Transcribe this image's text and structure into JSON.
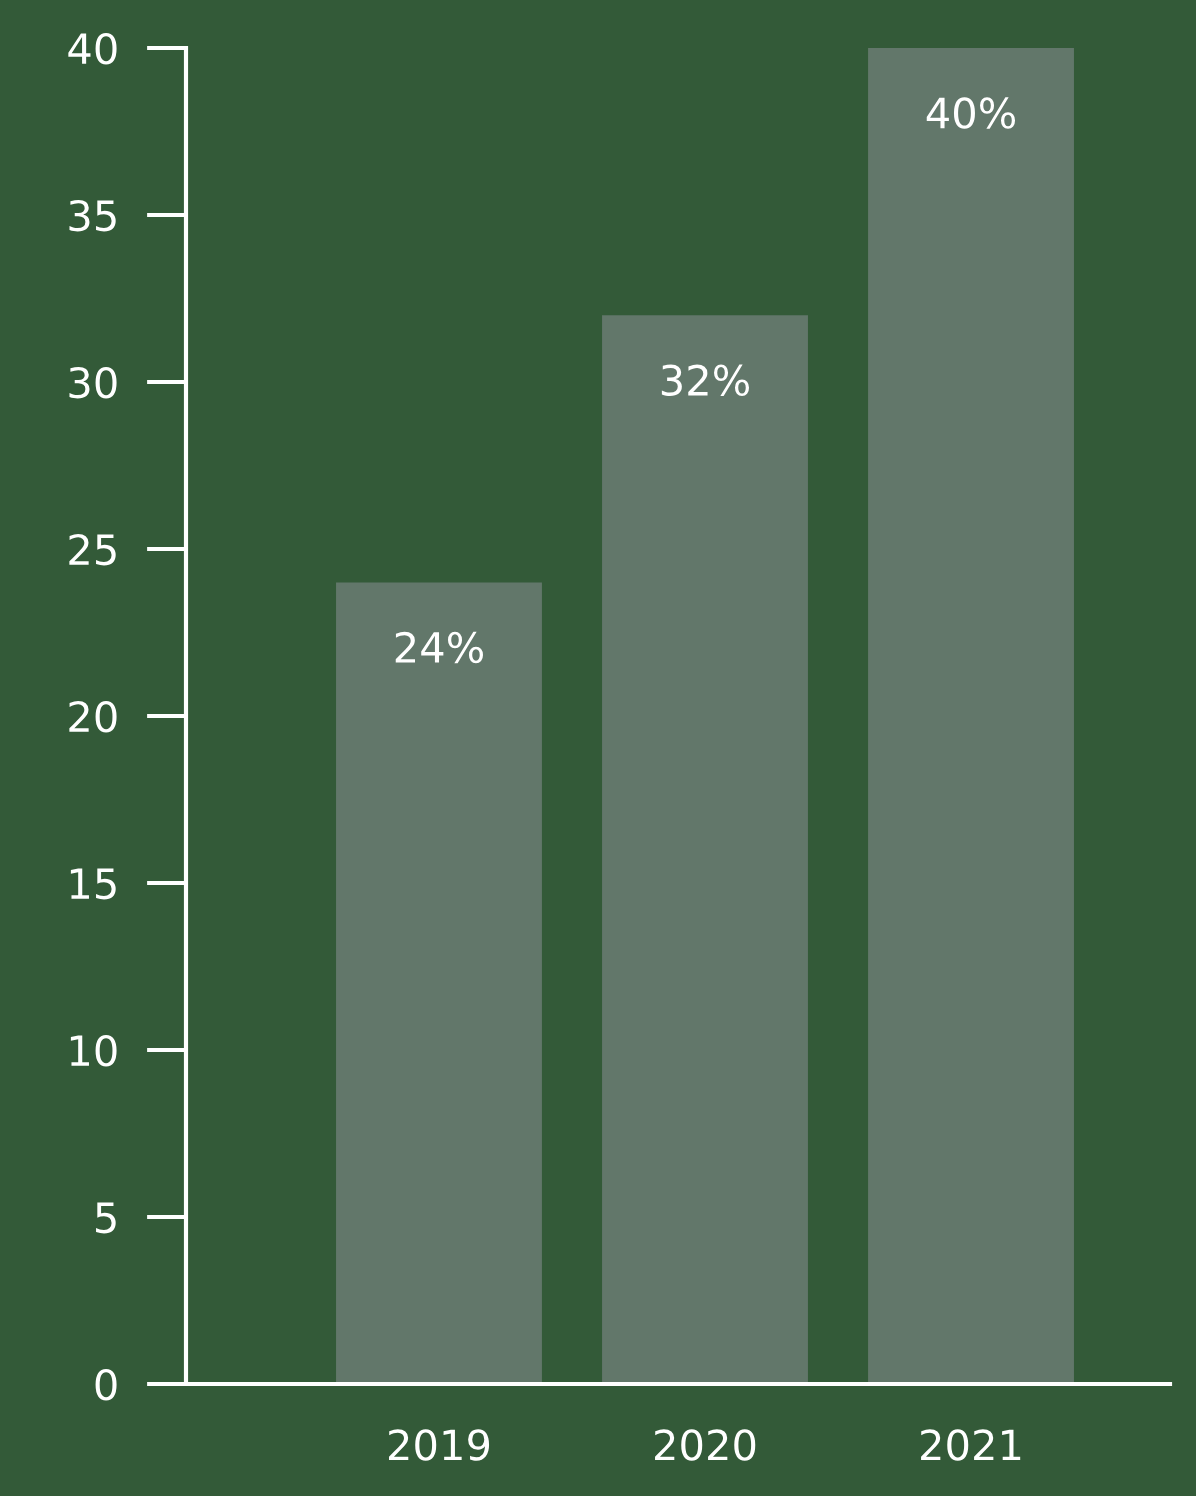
{
  "chart_data": {
    "type": "bar",
    "categories": [
      "2019",
      "2020",
      "2021"
    ],
    "values": [
      24,
      32,
      40
    ],
    "color": "#62776a",
    "value_labels": [
      "24%",
      "32%",
      "40%"
    ],
    "ylim": [
      0,
      40
    ],
    "yticks": [
      0,
      5,
      10,
      15,
      20,
      25,
      30,
      35,
      40
    ],
    "grid": false,
    "legend": false
  }
}
